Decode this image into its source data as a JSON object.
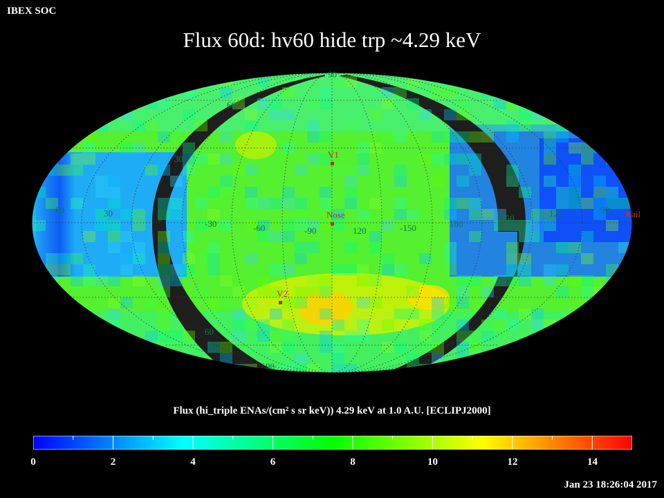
{
  "header": {
    "org": "IBEX SOC",
    "title": "Flux   60d: hv60 hide trp ~4.29 keV"
  },
  "map": {
    "projection": "mollweide",
    "frame": "ECLIPJ2000",
    "lat_labels": [
      "90",
      "60",
      "30",
      "30",
      "60",
      "90"
    ],
    "lon_labels": [
      "60",
      "30",
      "0",
      "-30",
      "-60",
      "-90",
      "120",
      "-150",
      "180",
      "150",
      "120",
      "90"
    ],
    "markers": [
      {
        "name": "V1",
        "lon": 5,
        "lat": 33,
        "color": "#e03020"
      },
      {
        "name": "Nose",
        "lon": 0,
        "lat": 0,
        "color": "#e03020"
      },
      {
        "name": "V2",
        "lon": 35,
        "lat": -31,
        "color": "#e03020"
      },
      {
        "name": "Tail",
        "lon": 180,
        "lat": 0,
        "color": "#e03020"
      }
    ],
    "hidden_region_color": "#1e1e1e",
    "grid": true
  },
  "colorbar": {
    "label": "Flux (hi_triple ENAs/(cm² s sr keV))  4.29 keV at 1.0 A.U. [ECLIPJ2000]",
    "min": 0,
    "max": 15,
    "ticks": [
      "0",
      "2",
      "4",
      "6",
      "8",
      "10",
      "12",
      "14"
    ],
    "colors": [
      "#0000ff",
      "#00ffff",
      "#00ff00",
      "#ffff00",
      "#ff0000"
    ]
  },
  "footer": {
    "timestamp": "Jan 23 18:26:04 2017"
  }
}
